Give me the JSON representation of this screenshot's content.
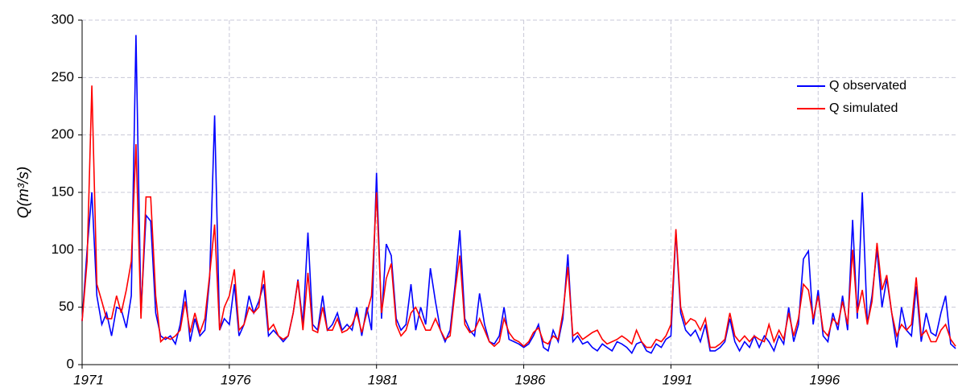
{
  "chart_data": {
    "type": "line",
    "y_label": "Q(m³/s)",
    "xlim": [
      1971,
      2000.75
    ],
    "xticks": [
      1971,
      1976,
      1981,
      1986,
      1991,
      1996
    ],
    "ylim": [
      0,
      300
    ],
    "yticks": [
      0,
      50,
      100,
      150,
      200,
      250,
      300
    ],
    "grid": true,
    "legend": "upper right",
    "x": [
      1971,
      1971.17,
      1971.33,
      1971.5,
      1971.67,
      1971.83,
      1972,
      1972.17,
      1972.33,
      1972.5,
      1972.67,
      1972.83,
      1973,
      1973.17,
      1973.33,
      1973.5,
      1973.67,
      1973.83,
      1974,
      1974.17,
      1974.33,
      1974.5,
      1974.67,
      1974.83,
      1975,
      1975.17,
      1975.33,
      1975.5,
      1975.67,
      1975.83,
      1976,
      1976.17,
      1976.33,
      1976.5,
      1976.67,
      1976.83,
      1977,
      1977.17,
      1977.33,
      1977.5,
      1977.67,
      1977.83,
      1978,
      1978.17,
      1978.33,
      1978.5,
      1978.67,
      1978.83,
      1979,
      1979.17,
      1979.33,
      1979.5,
      1979.67,
      1979.83,
      1980,
      1980.17,
      1980.33,
      1980.5,
      1980.67,
      1980.83,
      1981,
      1981.17,
      1981.33,
      1981.5,
      1981.67,
      1981.83,
      1982,
      1982.17,
      1982.33,
      1982.5,
      1982.67,
      1982.83,
      1983,
      1983.17,
      1983.33,
      1983.5,
      1983.67,
      1983.83,
      1984,
      1984.17,
      1984.33,
      1984.5,
      1984.67,
      1984.83,
      1985,
      1985.17,
      1985.33,
      1985.5,
      1985.67,
      1985.83,
      1986,
      1986.17,
      1986.33,
      1986.5,
      1986.67,
      1986.83,
      1987,
      1987.17,
      1987.33,
      1987.5,
      1987.67,
      1987.83,
      1988,
      1988.17,
      1988.33,
      1988.5,
      1988.67,
      1988.83,
      1989,
      1989.17,
      1989.33,
      1989.5,
      1989.67,
      1989.83,
      1990,
      1990.17,
      1990.33,
      1990.5,
      1990.67,
      1990.83,
      1991,
      1991.17,
      1991.33,
      1991.5,
      1991.67,
      1991.83,
      1992,
      1992.17,
      1992.33,
      1992.5,
      1992.67,
      1992.83,
      1993,
      1993.17,
      1993.33,
      1993.5,
      1993.67,
      1993.83,
      1994,
      1994.17,
      1994.33,
      1994.5,
      1994.67,
      1994.83,
      1995,
      1995.17,
      1995.33,
      1995.5,
      1995.67,
      1995.83,
      1996,
      1996.17,
      1996.33,
      1996.5,
      1996.67,
      1996.83,
      1997,
      1997.17,
      1997.33,
      1997.5,
      1997.67,
      1997.83,
      1998,
      1998.17,
      1998.33,
      1998.5,
      1998.67,
      1998.83,
      1999,
      1999.17,
      1999.33,
      1999.5,
      1999.67,
      1999.83,
      2000,
      2000.17,
      2000.33,
      2000.5,
      2000.67
    ],
    "series": [
      {
        "name": "Q observated",
        "color": "#0000ff",
        "values": [
          38,
          100,
          150,
          60,
          35,
          45,
          25,
          50,
          48,
          32,
          60,
          287,
          45,
          130,
          125,
          45,
          25,
          22,
          25,
          18,
          35,
          65,
          20,
          40,
          25,
          30,
          75,
          217,
          30,
          40,
          35,
          70,
          25,
          35,
          60,
          45,
          55,
          70,
          25,
          30,
          25,
          20,
          25,
          45,
          74,
          35,
          115,
          35,
          30,
          60,
          30,
          35,
          45,
          30,
          35,
          30,
          50,
          25,
          50,
          30,
          167,
          40,
          105,
          95,
          40,
          30,
          35,
          70,
          30,
          50,
          35,
          84,
          55,
          30,
          20,
          30,
          70,
          117,
          40,
          30,
          25,
          62,
          35,
          20,
          18,
          25,
          50,
          22,
          20,
          18,
          15,
          18,
          25,
          35,
          15,
          12,
          30,
          20,
          40,
          96,
          20,
          25,
          18,
          20,
          15,
          12,
          18,
          15,
          12,
          20,
          18,
          15,
          10,
          18,
          20,
          12,
          10,
          18,
          15,
          22,
          25,
          116,
          45,
          30,
          25,
          30,
          20,
          35,
          12,
          12,
          15,
          20,
          40,
          20,
          12,
          20,
          15,
          25,
          15,
          25,
          20,
          12,
          25,
          18,
          50,
          20,
          35,
          92,
          99,
          35,
          65,
          25,
          20,
          45,
          30,
          60,
          30,
          126,
          40,
          150,
          35,
          60,
          100,
          50,
          75,
          45,
          15,
          50,
          30,
          25,
          68,
          20,
          45,
          28,
          25,
          45,
          60,
          18,
          14
        ]
      },
      {
        "name": "Q simulated",
        "color": "#ff0000",
        "values": [
          38,
          90,
          243,
          70,
          55,
          40,
          40,
          60,
          45,
          65,
          90,
          192,
          40,
          146,
          146,
          60,
          20,
          24,
          22,
          25,
          30,
          55,
          28,
          45,
          28,
          40,
          78,
          122,
          30,
          50,
          60,
          83,
          30,
          35,
          50,
          45,
          50,
          82,
          30,
          35,
          25,
          22,
          25,
          45,
          73,
          30,
          80,
          30,
          28,
          50,
          30,
          30,
          40,
          28,
          30,
          35,
          45,
          28,
          45,
          60,
          150,
          45,
          75,
          88,
          35,
          25,
          30,
          45,
          50,
          40,
          30,
          30,
          40,
          30,
          22,
          25,
          65,
          95,
          35,
          28,
          30,
          40,
          30,
          20,
          16,
          20,
          40,
          28,
          22,
          20,
          16,
          20,
          28,
          32,
          20,
          18,
          25,
          22,
          45,
          85,
          25,
          28,
          22,
          25,
          28,
          30,
          22,
          18,
          20,
          22,
          25,
          22,
          18,
          30,
          20,
          15,
          15,
          22,
          20,
          25,
          35,
          118,
          50,
          35,
          40,
          38,
          30,
          40,
          15,
          15,
          18,
          22,
          45,
          25,
          20,
          25,
          20,
          25,
          22,
          20,
          35,
          20,
          30,
          22,
          45,
          25,
          40,
          70,
          65,
          40,
          60,
          30,
          25,
          40,
          35,
          55,
          35,
          100,
          45,
          65,
          35,
          55,
          106,
          65,
          78,
          45,
          25,
          35,
          30,
          35,
          76,
          25,
          30,
          20,
          20,
          30,
          35,
          22,
          16
        ]
      }
    ]
  }
}
